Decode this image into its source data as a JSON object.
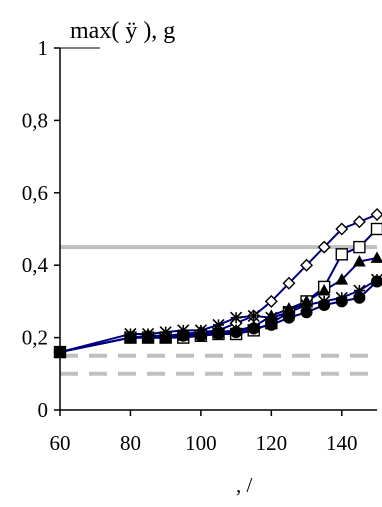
{
  "chart_data": {
    "type": "line",
    "title": "max( ÿ ), g",
    "xlabel": ", /",
    "ylabel": "",
    "xlim": [
      60,
      150
    ],
    "ylim": [
      0,
      1
    ],
    "x_ticks": [
      60,
      80,
      100,
      120,
      140
    ],
    "x_tick_labels": [
      "60",
      "80",
      "100",
      "120",
      "140"
    ],
    "y_ticks": [
      0,
      0.2,
      0.4,
      0.6,
      0.8,
      1
    ],
    "y_tick_labels": [
      "0",
      "0,2",
      "0,4",
      "0,6",
      "0,8",
      "1"
    ],
    "grid": false,
    "reference_lines": [
      {
        "y": 0.45,
        "style": "solid",
        "color": "#c0c0c0"
      },
      {
        "y": 0.15,
        "style": "dashed",
        "color": "#c0c0c0"
      },
      {
        "y": 0.1,
        "style": "dashed",
        "color": "#c0c0c0"
      }
    ],
    "series": [
      {
        "marker": "diamond-open",
        "color": "#000080",
        "x": [
          60,
          80,
          85,
          90,
          95,
          100,
          105,
          110,
          115,
          120,
          125,
          130,
          135,
          140,
          145,
          150
        ],
        "y": [
          0.16,
          0.2,
          0.205,
          0.205,
          0.21,
          0.215,
          0.22,
          0.24,
          0.26,
          0.3,
          0.35,
          0.4,
          0.45,
          0.5,
          0.52,
          0.54
        ]
      },
      {
        "marker": "square-open",
        "color": "#000080",
        "x": [
          60,
          80,
          85,
          90,
          95,
          100,
          105,
          110,
          115,
          120,
          125,
          130,
          135,
          140,
          145,
          150
        ],
        "y": [
          0.16,
          0.2,
          0.2,
          0.2,
          0.2,
          0.205,
          0.21,
          0.21,
          0.22,
          0.24,
          0.27,
          0.3,
          0.34,
          0.43,
          0.45,
          0.5
        ]
      },
      {
        "marker": "triangle-filled",
        "color": "#000080",
        "x": [
          60,
          80,
          85,
          90,
          95,
          100,
          105,
          110,
          115,
          120,
          125,
          130,
          135,
          140,
          145,
          150
        ],
        "y": [
          0.16,
          0.2,
          0.2,
          0.2,
          0.205,
          0.21,
          0.215,
          0.22,
          0.23,
          0.26,
          0.28,
          0.3,
          0.33,
          0.36,
          0.41,
          0.42
        ]
      },
      {
        "marker": "asterisk",
        "color": "#000080",
        "x": [
          60,
          80,
          85,
          90,
          95,
          100,
          105,
          110,
          115,
          120,
          125,
          130,
          135,
          140,
          145,
          150
        ],
        "y": [
          0.16,
          0.21,
          0.21,
          0.215,
          0.22,
          0.22,
          0.235,
          0.255,
          0.26,
          0.255,
          0.27,
          0.29,
          0.3,
          0.31,
          0.33,
          0.36
        ]
      },
      {
        "marker": "circle-filled",
        "color": "#000080",
        "x": [
          60,
          80,
          85,
          90,
          95,
          100,
          105,
          110,
          115,
          120,
          125,
          130,
          135,
          140,
          145,
          150
        ],
        "y": [
          0.16,
          0.2,
          0.2,
          0.2,
          0.205,
          0.205,
          0.21,
          0.215,
          0.225,
          0.235,
          0.255,
          0.27,
          0.29,
          0.3,
          0.31,
          0.355
        ]
      }
    ]
  }
}
